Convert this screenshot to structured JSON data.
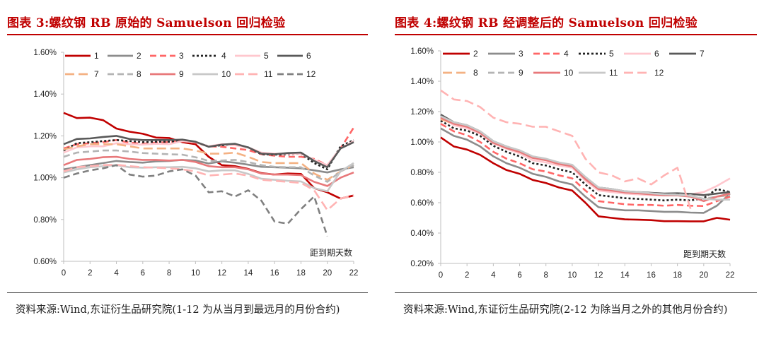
{
  "charts": [
    {
      "title": "图表 3:螺纹钢 RB 原始的 Samuelson 回归检验",
      "source": "资料来源:Wind,东证衍生品研究院(1-12 为从当月到最远月的月份合约)",
      "chart_data": {
        "type": "line",
        "xlabel": "距到期天数",
        "x": [
          0,
          1,
          2,
          3,
          4,
          5,
          6,
          7,
          8,
          9,
          10,
          11,
          12,
          13,
          14,
          15,
          16,
          17,
          18,
          19,
          20,
          21,
          22
        ],
        "x_ticks": [
          0,
          2,
          4,
          6,
          8,
          10,
          12,
          14,
          16,
          18,
          20,
          22
        ],
        "ylim": [
          0.006,
          0.016
        ],
        "y_ticks": [
          0.006,
          0.008,
          0.01,
          0.012,
          0.014,
          0.016
        ],
        "y_tick_labels": [
          "0.60%",
          "0.80%",
          "1.00%",
          "1.20%",
          "1.40%",
          "1.60%"
        ],
        "legend_position": "top",
        "series": [
          {
            "name": "1",
            "color": "#c00000",
            "dash": "solid",
            "values": [
              0.0131,
              0.01285,
              0.01287,
              0.01275,
              0.01235,
              0.0122,
              0.0121,
              0.01192,
              0.0119,
              0.0117,
              0.0116,
              0.011,
              0.0106,
              0.01055,
              0.01042,
              0.01022,
              0.01015,
              0.0102,
              0.01018,
              0.0095,
              0.0093,
              0.009,
              0.00915
            ]
          },
          {
            "name": "2",
            "color": "#8c8c8c",
            "dash": "solid",
            "values": [
              0.0104,
              0.0105,
              0.0106,
              0.0107,
              0.0108,
              0.01075,
              0.01072,
              0.01078,
              0.0108,
              0.01085,
              0.01082,
              0.01068,
              0.01078,
              0.01072,
              0.01062,
              0.01052,
              0.0105,
              0.01048,
              0.01045,
              0.01035,
              0.01025,
              0.0104,
              0.0105
            ]
          },
          {
            "name": "3",
            "color": "#ff6666",
            "dash": "dash",
            "values": [
              0.0114,
              0.0116,
              0.01165,
              0.0117,
              0.0118,
              0.01168,
              0.01162,
              0.01168,
              0.0117,
              0.01175,
              0.01168,
              0.0115,
              0.01148,
              0.0114,
              0.01132,
              0.01112,
              0.01105,
              0.011,
              0.011,
              0.0109,
              0.0106,
              0.0114,
              0.0124
            ]
          },
          {
            "name": "4",
            "color": "#222222",
            "dash": "dot",
            "values": [
              0.0113,
              0.01165,
              0.0117,
              0.01175,
              0.0118,
              0.01175,
              0.0117,
              0.01172,
              0.01172,
              0.01175,
              0.0117,
              0.0115,
              0.01155,
              0.0116,
              0.01145,
              0.01112,
              0.0111,
              0.01112,
              0.01115,
              0.0107,
              0.0104,
              0.0115,
              0.0118
            ]
          },
          {
            "name": "5",
            "color": "#ffc7ce",
            "dash": "solid",
            "values": [
              0.0112,
              0.01145,
              0.0115,
              0.0115,
              0.01165,
              0.0116,
              0.01158,
              0.01162,
              0.0116,
              0.01175,
              0.0117,
              0.0115,
              0.0116,
              0.01155,
              0.01145,
              0.0112,
              0.01115,
              0.01115,
              0.01115,
              0.01085,
              0.0106,
              0.0114,
              0.01175
            ]
          },
          {
            "name": "6",
            "color": "#595959",
            "dash": "solid",
            "values": [
              0.0116,
              0.01185,
              0.01188,
              0.01195,
              0.012,
              0.01185,
              0.0118,
              0.0118,
              0.0118,
              0.01182,
              0.01172,
              0.01148,
              0.01158,
              0.01162,
              0.01145,
              0.01115,
              0.01112,
              0.01118,
              0.0112,
              0.0108,
              0.0105,
              0.0114,
              0.0117
            ]
          },
          {
            "name": "7",
            "color": "#f4b183",
            "dash": "dashlong",
            "values": [
              0.01135,
              0.0115,
              0.0116,
              0.0116,
              0.0116,
              0.0115,
              0.0114,
              0.0114,
              0.0114,
              0.0114,
              0.0113,
              0.01115,
              0.01115,
              0.0112,
              0.011,
              0.01075,
              0.0107,
              0.0107,
              0.0107,
              0.0102,
              0.0099,
              0.0103,
              0.0106
            ]
          },
          {
            "name": "8",
            "color": "#b4b4b4",
            "dash": "dash",
            "values": [
              0.011,
              0.0112,
              0.01125,
              0.0113,
              0.0113,
              0.01125,
              0.01118,
              0.01115,
              0.01112,
              0.0111,
              0.01098,
              0.0108,
              0.01082,
              0.01085,
              0.01075,
              0.0106,
              0.01052,
              0.0105,
              0.0105,
              0.0101,
              0.0098,
              0.0103,
              0.0106
            ]
          },
          {
            "name": "9",
            "color": "#e8787a",
            "dash": "solid",
            "values": [
              0.0106,
              0.01085,
              0.0109,
              0.01098,
              0.011,
              0.0109,
              0.01085,
              0.01085,
              0.01082,
              0.01085,
              0.01075,
              0.01055,
              0.0105,
              0.0105,
              0.0104,
              0.0102,
              0.01015,
              0.01015,
              0.01012,
              0.0098,
              0.0096,
              0.01,
              0.01025
            ]
          },
          {
            "name": "10",
            "color": "#c8c8c8",
            "dash": "solid",
            "values": [
              0.01025,
              0.0104,
              0.0105,
              0.01055,
              0.0106,
              0.0105,
              0.01048,
              0.0105,
              0.0105,
              0.01052,
              0.01045,
              0.0103,
              0.01035,
              0.01035,
              0.01018,
              0.00995,
              0.0099,
              0.00985,
              0.00982,
              0.0095,
              0.00935,
              0.0103,
              0.0107
            ]
          },
          {
            "name": "11",
            "color": "#ffb3b3",
            "dash": "dashlong",
            "values": [
              0.0103,
              0.0105,
              0.01055,
              0.0106,
              0.01062,
              0.01055,
              0.0105,
              0.01048,
              0.01045,
              0.0104,
              0.0103,
              0.0101,
              0.01015,
              0.0102,
              0.0101,
              0.0099,
              0.00985,
              0.0098,
              0.00975,
              0.0094,
              0.00845,
              0.009,
              0.00915
            ]
          },
          {
            "name": "12",
            "color": "#808080",
            "dash": "dash",
            "values": [
              0.01,
              0.0102,
              0.01035,
              0.01045,
              0.0106,
              0.01015,
              0.01005,
              0.0101,
              0.0103,
              0.0104,
              0.0101,
              0.0093,
              0.00935,
              0.0091,
              0.0094,
              0.0089,
              0.0079,
              0.0078,
              0.0085,
              0.0091,
              0.0072,
              null,
              null
            ]
          }
        ]
      }
    },
    {
      "title": "图表 4:螺纹钢 RB 经调整后的 Samuelson 回归检验",
      "source": "资料来源:Wind,东证衍生品研究院(2-12 为除当月之外的其他月份合约)",
      "chart_data": {
        "type": "line",
        "xlabel": "距到期天数",
        "x": [
          0,
          1,
          2,
          3,
          4,
          5,
          6,
          7,
          8,
          9,
          10,
          11,
          12,
          13,
          14,
          15,
          16,
          17,
          18,
          19,
          20,
          21,
          22
        ],
        "x_ticks": [
          0,
          2,
          4,
          6,
          8,
          10,
          12,
          14,
          16,
          18,
          20,
          22
        ],
        "ylim": [
          0.002,
          0.016
        ],
        "y_ticks": [
          0.002,
          0.004,
          0.006,
          0.008,
          0.01,
          0.012,
          0.014,
          0.016
        ],
        "y_tick_labels": [
          "0.20%",
          "0.40%",
          "0.60%",
          "0.80%",
          "1.00%",
          "1.20%",
          "1.40%",
          "1.60%"
        ],
        "legend_position": "top",
        "series": [
          {
            "name": "2",
            "color": "#c00000",
            "dash": "solid",
            "values": [
              0.0103,
              0.0097,
              0.0095,
              0.00915,
              0.0086,
              0.00815,
              0.0079,
              0.0075,
              0.0073,
              0.007,
              0.0068,
              0.006,
              0.0051,
              0.005,
              0.0049,
              0.00488,
              0.00485,
              0.00478,
              0.00478,
              0.00477,
              0.00477,
              0.005,
              0.00488
            ]
          },
          {
            "name": "3",
            "color": "#8c8c8c",
            "dash": "solid",
            "values": [
              0.0109,
              0.0104,
              0.01015,
              0.0097,
              0.00905,
              0.0086,
              0.0083,
              0.0079,
              0.0077,
              0.0074,
              0.0072,
              0.0064,
              0.0057,
              0.00558,
              0.0055,
              0.0055,
              0.00545,
              0.0054,
              0.0054,
              0.00535,
              0.00533,
              0.0058,
              0.0066
            ]
          },
          {
            "name": "4",
            "color": "#ff6666",
            "dash": "dash",
            "values": [
              0.0112,
              0.0107,
              0.01045,
              0.01,
              0.00935,
              0.0089,
              0.0086,
              0.0082,
              0.00805,
              0.0078,
              0.0076,
              0.0068,
              0.0061,
              0.006,
              0.0059,
              0.00585,
              0.00585,
              0.0058,
              0.00585,
              0.0058,
              0.00578,
              0.0061,
              0.0064
            ]
          },
          {
            "name": "5",
            "color": "#222222",
            "dash": "dot",
            "values": [
              0.0114,
              0.0109,
              0.01075,
              0.0104,
              0.00975,
              0.00935,
              0.00905,
              0.0086,
              0.00845,
              0.0082,
              0.008,
              0.0072,
              0.0065,
              0.0064,
              0.0063,
              0.00625,
              0.0062,
              0.00615,
              0.0062,
              0.00615,
              0.0063,
              0.0069,
              0.0067
            ]
          },
          {
            "name": "6",
            "color": "#ffc7ce",
            "dash": "solid",
            "values": [
              0.0116,
              0.0111,
              0.0109,
              0.01055,
              0.0099,
              0.00955,
              0.00925,
              0.0088,
              0.00865,
              0.00845,
              0.0083,
              0.00745,
              0.0068,
              0.0067,
              0.0066,
              0.00655,
              0.0065,
              0.00648,
              0.0065,
              0.00655,
              0.0067,
              0.0071,
              0.0076
            ]
          },
          {
            "name": "7",
            "color": "#595959",
            "dash": "solid",
            "values": [
              0.0118,
              0.0113,
              0.0111,
              0.0107,
              0.01005,
              0.0097,
              0.0094,
              0.009,
              0.00885,
              0.0086,
              0.00845,
              0.0076,
              0.007,
              0.0069,
              0.00675,
              0.0067,
              0.00665,
              0.0066,
              0.00662,
              0.00658,
              0.0065,
              0.0066,
              0.0067
            ]
          },
          {
            "name": "8",
            "color": "#f4b183",
            "dash": "dashlong",
            "values": [
              0.0115,
              0.0112,
              0.01105,
              0.0106,
              0.00995,
              0.0096,
              0.00935,
              0.00895,
              0.0088,
              0.00855,
              0.0084,
              0.0076,
              0.00695,
              0.00685,
              0.00668,
              0.00665,
              0.00655,
              0.0065,
              0.0065,
              0.00645,
              0.0062,
              0.0064,
              0.0065
            ]
          },
          {
            "name": "9",
            "color": "#b4b4b4",
            "dash": "dash",
            "values": [
              0.01165,
              0.01125,
              0.0111,
              0.01065,
              0.01,
              0.00965,
              0.0094,
              0.009,
              0.00885,
              0.0086,
              0.00845,
              0.00765,
              0.007,
              0.0069,
              0.00672,
              0.00668,
              0.0066,
              0.00655,
              0.00655,
              0.0065,
              0.00625,
              0.0064,
              0.0065
            ]
          },
          {
            "name": "10",
            "color": "#e8787a",
            "dash": "solid",
            "values": [
              0.0116,
              0.0112,
              0.011,
              0.0106,
              0.00995,
              0.0096,
              0.00935,
              0.00895,
              0.0088,
              0.00855,
              0.0084,
              0.00755,
              0.0069,
              0.0068,
              0.00668,
              0.00662,
              0.00655,
              0.00648,
              0.00648,
              0.0064,
              0.0061,
              0.0064,
              0.0066
            ]
          },
          {
            "name": "11",
            "color": "#c8c8c8",
            "dash": "solid",
            "values": [
              0.0117,
              0.0113,
              0.0111,
              0.0107,
              0.01005,
              0.0097,
              0.00945,
              0.00905,
              0.0089,
              0.00865,
              0.0085,
              0.0077,
              0.007,
              0.0069,
              0.00675,
              0.0067,
              0.00662,
              0.00655,
              0.00652,
              0.00645,
              0.00625,
              0.0062,
              0.0062
            ]
          },
          {
            "name": "12",
            "color": "#ffb3b3",
            "dash": "dashlong",
            "values": [
              0.0134,
              0.0128,
              0.0127,
              0.0123,
              0.0116,
              0.0113,
              0.0112,
              0.011,
              0.011,
              0.0107,
              0.0104,
              0.0089,
              0.008,
              0.0078,
              0.0074,
              0.0076,
              0.0072,
              0.0078,
              0.0083,
              0.0056,
              null,
              null,
              null
            ]
          }
        ]
      }
    }
  ]
}
